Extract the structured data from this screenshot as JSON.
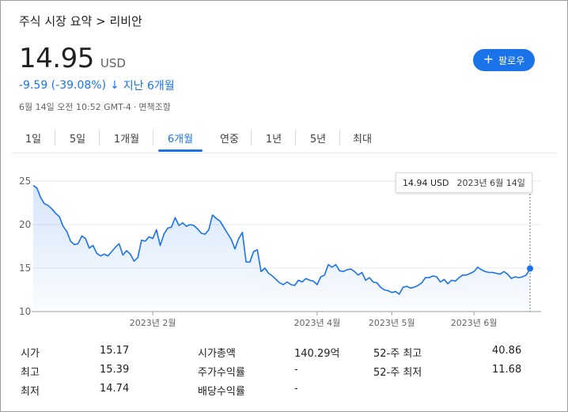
{
  "breadcrumb": "주식 시장 요약 > 리비안",
  "quote": {
    "price": "14.95",
    "currency": "USD",
    "change": "-9.59 (-39.08%)",
    "change_arrow": "↓",
    "change_period": "지난 6개월",
    "timestamp": "6월 14일 오전 10:52 GMT-4",
    "disclaimer": "면책조항"
  },
  "follow_button": {
    "icon": "plus-icon",
    "label": "팔로우",
    "color": "#1a73e8"
  },
  "tabs": [
    "1일",
    "5일",
    "1개월",
    "6개월",
    "연중",
    "1년",
    "5년",
    "최대"
  ],
  "active_tab": "6개월",
  "tooltip": {
    "price": "14.94 USD",
    "date": "2023년 6월 14일"
  },
  "chart_data": {
    "type": "area",
    "title": "",
    "xlabel": "",
    "ylabel": "",
    "ylim": [
      10,
      25
    ],
    "yticks": [
      10,
      15,
      20,
      25
    ],
    "xticks": [
      {
        "label": "2023년 2월",
        "index": 32
      },
      {
        "label": "2023년 4월",
        "index": 76
      },
      {
        "label": "2023년 5월",
        "index": 96
      },
      {
        "label": "2023년 6월",
        "index": 118
      }
    ],
    "grid": "horizontal",
    "line_color": "#1a73e8",
    "fill_color": "#e8f0fe",
    "series": [
      {
        "values": [
          24.5,
          24.2,
          23.1,
          22.4,
          22.2,
          21.8,
          21.3,
          20.9,
          19.8,
          19.2,
          18.1,
          17.7,
          17.8,
          18.7,
          18.4,
          17.3,
          17.6,
          16.7,
          16.4,
          16.6,
          16.4,
          16.9,
          17.4,
          17.8,
          16.5,
          17.0,
          16.6,
          15.8,
          16.2,
          18.2,
          18.1,
          18.6,
          18.4,
          19.4,
          17.6,
          18.9,
          19.6,
          19.7,
          20.8,
          19.9,
          20.2,
          19.8,
          20.0,
          19.9,
          19.5,
          19.0,
          18.9,
          19.4,
          21.1,
          20.7,
          20.4,
          19.7,
          19.0,
          18.3,
          17.2,
          18.4,
          19.1,
          15.7,
          15.7,
          16.9,
          17.1,
          14.6,
          15.0,
          14.4,
          14.1,
          13.7,
          13.3,
          13.1,
          13.4,
          13.1,
          13.0,
          13.6,
          13.4,
          13.8,
          13.6,
          13.5,
          13.1,
          14.0,
          14.2,
          15.4,
          15.1,
          15.4,
          14.7,
          14.6,
          14.8,
          14.9,
          14.6,
          14.2,
          14.5,
          13.6,
          13.9,
          13.4,
          13.3,
          12.8,
          12.5,
          12.4,
          12.2,
          12.3,
          12.0,
          12.8,
          12.9,
          12.7,
          12.8,
          13.0,
          13.3,
          13.9,
          13.9,
          14.1,
          14.0,
          13.4,
          13.7,
          13.2,
          13.6,
          13.5,
          13.9,
          14.2,
          14.2,
          14.4,
          14.6,
          15.1,
          14.8,
          14.6,
          14.5,
          14.5,
          14.4,
          14.3,
          14.6,
          14.3,
          13.8,
          14.0,
          13.9,
          14.0,
          14.2,
          14.95
        ]
      }
    ]
  },
  "stats": [
    [
      {
        "label": "시가",
        "value": "15.17"
      },
      {
        "label": "시가총액",
        "value": "140.29억"
      },
      {
        "label": "52-주 최고",
        "value": "40.86"
      }
    ],
    [
      {
        "label": "최고",
        "value": "15.39"
      },
      {
        "label": "주가수익률",
        "value": "-"
      },
      {
        "label": "52-주 최저",
        "value": "11.68"
      }
    ],
    [
      {
        "label": "최저",
        "value": "14.74"
      },
      {
        "label": "배당수익률",
        "value": "-"
      },
      {
        "label": "",
        "value": ""
      }
    ]
  ]
}
